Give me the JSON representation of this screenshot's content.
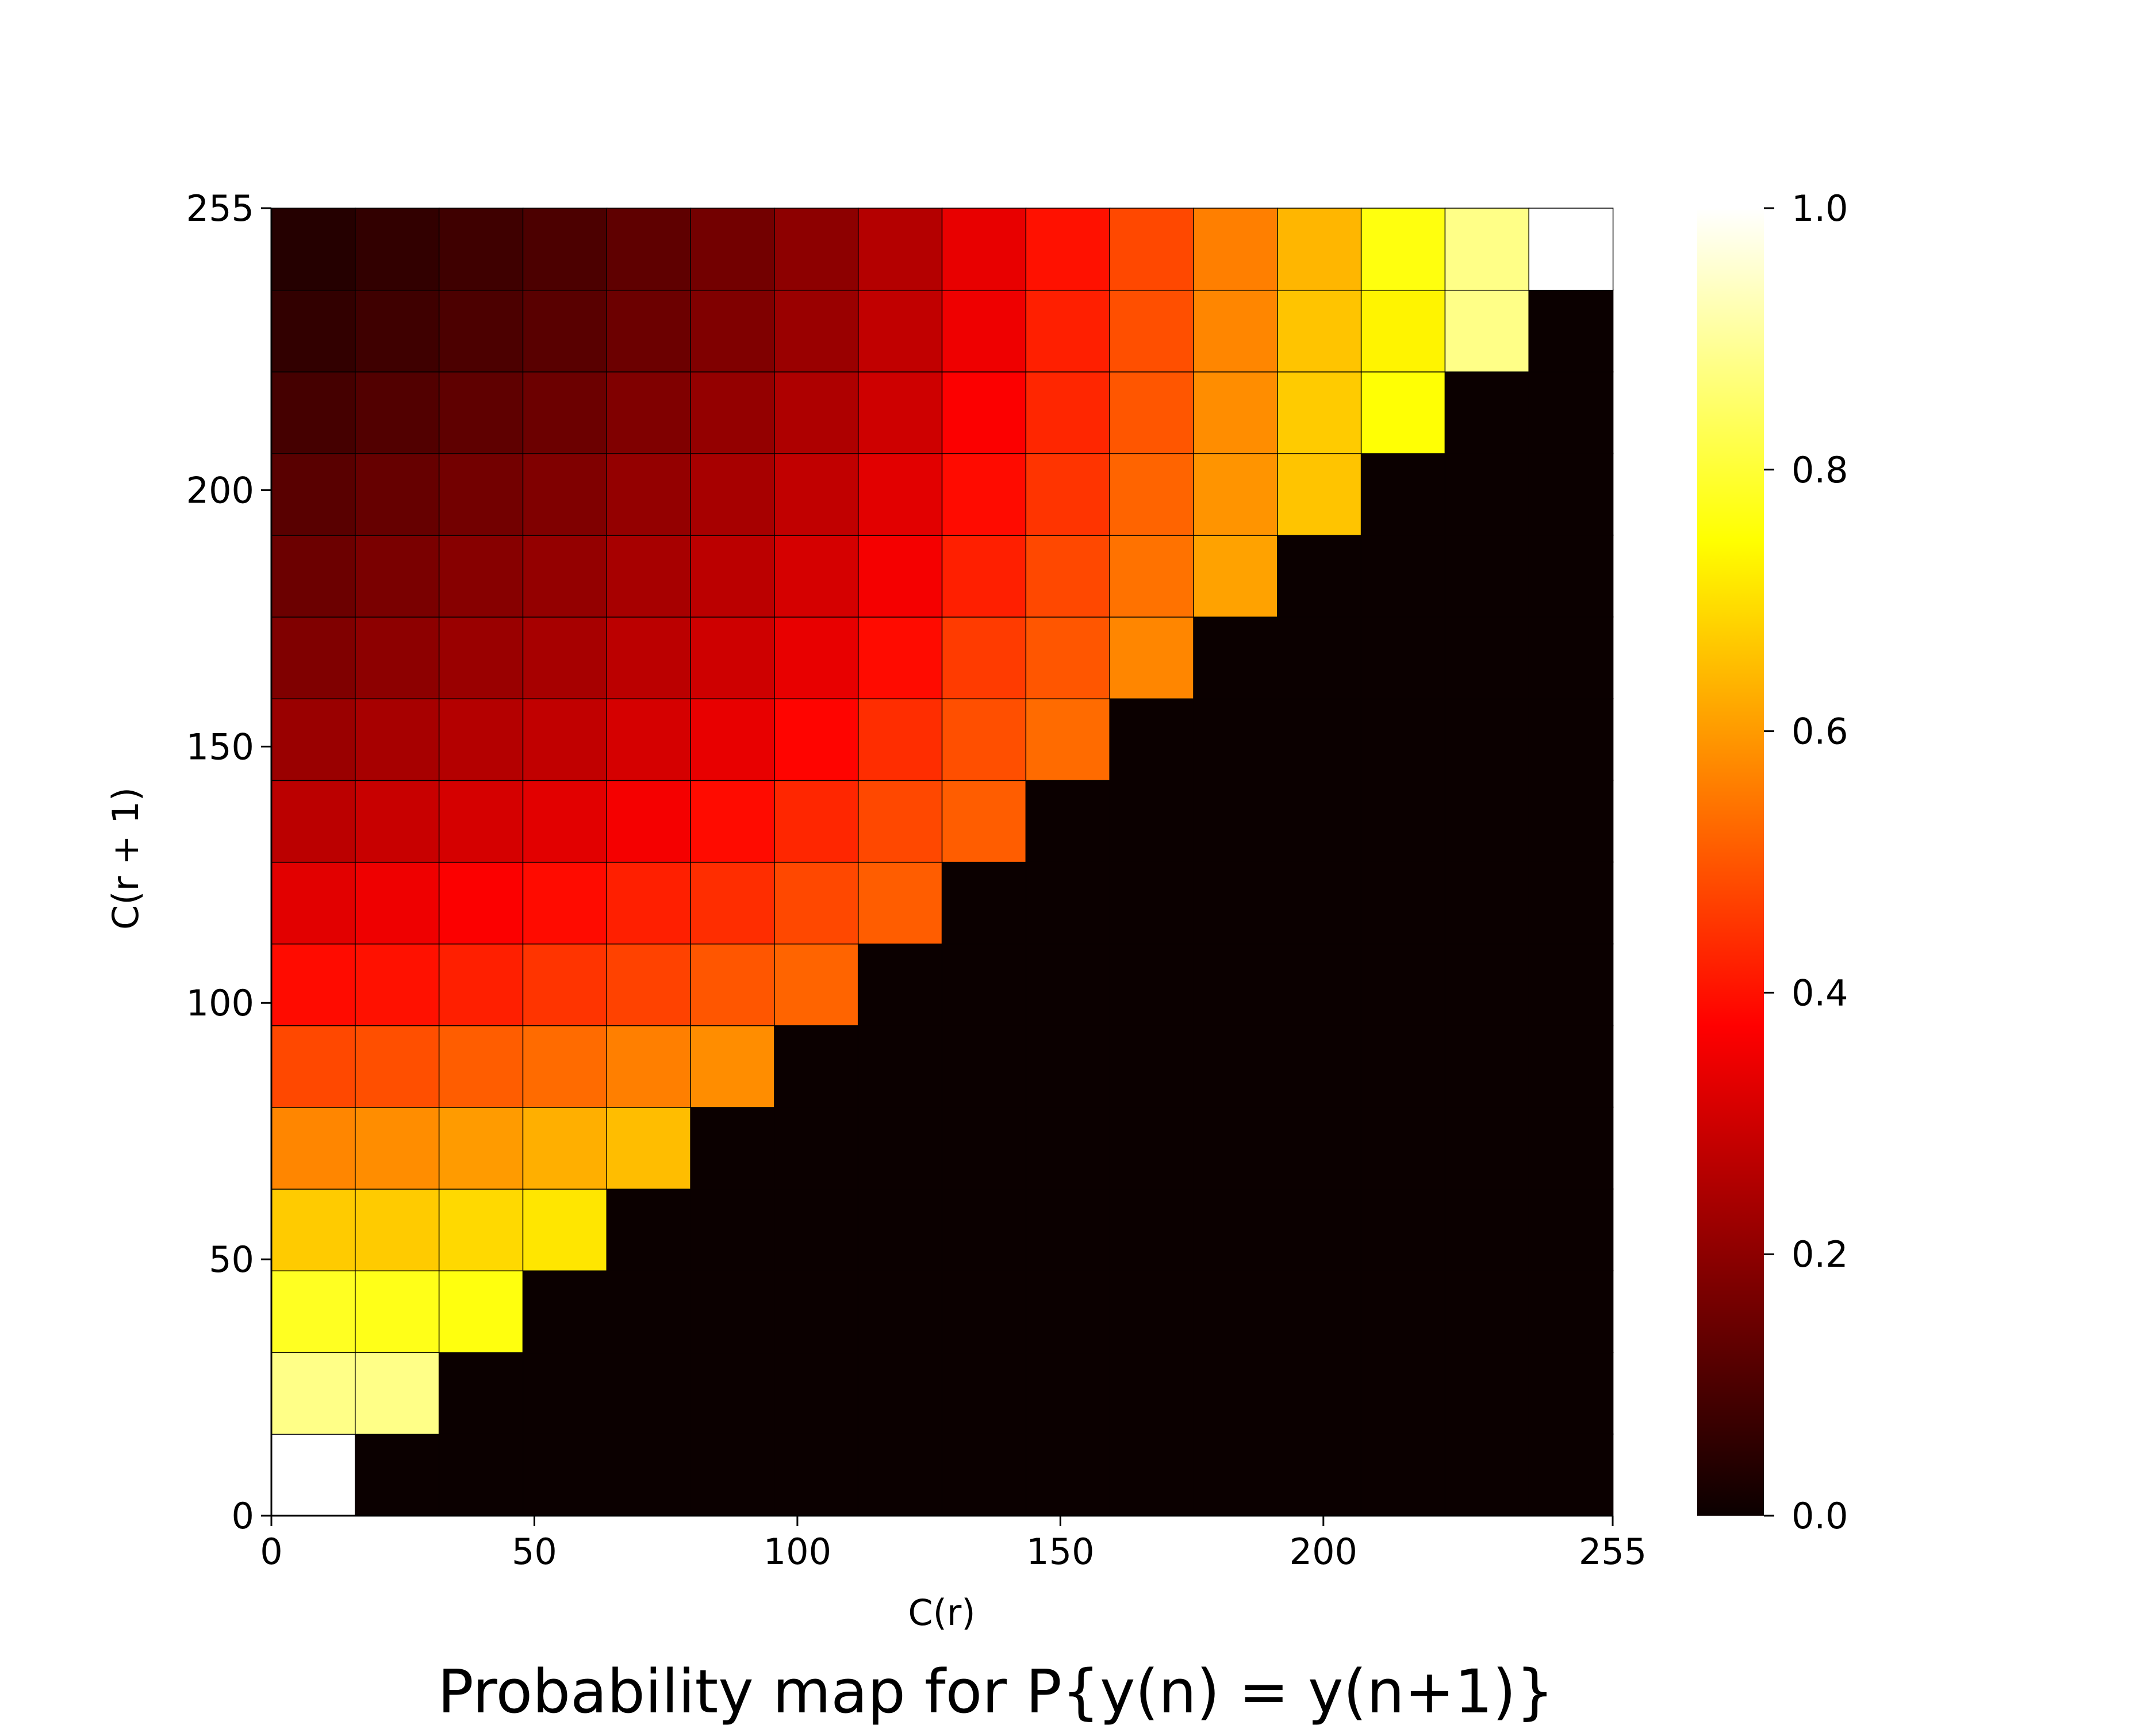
{
  "chart_data": {
    "type": "heatmap",
    "title": "Probability map for P{y(n) = y(n+1)}",
    "xlabel": "C(r)",
    "ylabel": "C(r + 1)",
    "xlim": [
      0,
      255
    ],
    "ylim": [
      0,
      255
    ],
    "x_ticks": [
      0,
      50,
      100,
      150,
      200,
      255
    ],
    "y_ticks": [
      0,
      50,
      100,
      150,
      200,
      255
    ],
    "x_tick_labels": [
      "0",
      "50",
      "100",
      "150",
      "200",
      "255"
    ],
    "y_tick_labels": [
      "0",
      "50",
      "100",
      "150",
      "200",
      "255"
    ],
    "colormap": "hot",
    "colorbar_range": [
      0.0,
      1.0
    ],
    "colorbar_ticks": [
      0.0,
      0.2,
      0.4,
      0.6,
      0.8,
      1.0
    ],
    "colorbar_tick_labels": [
      "0.0",
      "0.2",
      "0.4",
      "0.6",
      "0.8",
      "1.0"
    ],
    "grid": "16x16",
    "rows_note": "rows listed bottom (C(r+1)=0) to top (C(r+1)=255); columns left (C(r)=0) to right (C(r)=255)",
    "values": [
      [
        1.0,
        0.0,
        0.0,
        0.0,
        0.0,
        0.0,
        0.0,
        0.0,
        0.0,
        0.0,
        0.0,
        0.0,
        0.0,
        0.0,
        0.0,
        0.0
      ],
      [
        0.88,
        0.88,
        0.0,
        0.0,
        0.0,
        0.0,
        0.0,
        0.0,
        0.0,
        0.0,
        0.0,
        0.0,
        0.0,
        0.0,
        0.0,
        0.0
      ],
      [
        0.78,
        0.77,
        0.76,
        0.0,
        0.0,
        0.0,
        0.0,
        0.0,
        0.0,
        0.0,
        0.0,
        0.0,
        0.0,
        0.0,
        0.0,
        0.0
      ],
      [
        0.67,
        0.67,
        0.69,
        0.71,
        0.0,
        0.0,
        0.0,
        0.0,
        0.0,
        0.0,
        0.0,
        0.0,
        0.0,
        0.0,
        0.0,
        0.0
      ],
      [
        0.57,
        0.58,
        0.6,
        0.63,
        0.65,
        0.0,
        0.0,
        0.0,
        0.0,
        0.0,
        0.0,
        0.0,
        0.0,
        0.0,
        0.0,
        0.0
      ],
      [
        0.48,
        0.49,
        0.51,
        0.53,
        0.56,
        0.58,
        0.0,
        0.0,
        0.0,
        0.0,
        0.0,
        0.0,
        0.0,
        0.0,
        0.0,
        0.0
      ],
      [
        0.39,
        0.4,
        0.42,
        0.45,
        0.47,
        0.5,
        0.52,
        0.0,
        0.0,
        0.0,
        0.0,
        0.0,
        0.0,
        0.0,
        0.0,
        0.0
      ],
      [
        0.33,
        0.35,
        0.37,
        0.39,
        0.42,
        0.44,
        0.48,
        0.51,
        0.0,
        0.0,
        0.0,
        0.0,
        0.0,
        0.0,
        0.0,
        0.0
      ],
      [
        0.27,
        0.29,
        0.31,
        0.33,
        0.36,
        0.39,
        0.43,
        0.48,
        0.51,
        0.0,
        0.0,
        0.0,
        0.0,
        0.0,
        0.0,
        0.0
      ],
      [
        0.22,
        0.24,
        0.26,
        0.28,
        0.31,
        0.34,
        0.38,
        0.44,
        0.49,
        0.53,
        0.0,
        0.0,
        0.0,
        0.0,
        0.0,
        0.0
      ],
      [
        0.18,
        0.2,
        0.22,
        0.24,
        0.27,
        0.3,
        0.34,
        0.39,
        0.46,
        0.5,
        0.57,
        0.0,
        0.0,
        0.0,
        0.0,
        0.0
      ],
      [
        0.15,
        0.17,
        0.19,
        0.21,
        0.24,
        0.27,
        0.31,
        0.36,
        0.42,
        0.48,
        0.54,
        0.61,
        0.0,
        0.0,
        0.0,
        0.0
      ],
      [
        0.12,
        0.14,
        0.16,
        0.18,
        0.21,
        0.24,
        0.28,
        0.33,
        0.39,
        0.45,
        0.52,
        0.59,
        0.66,
        0.0,
        0.0,
        0.0
      ],
      [
        0.09,
        0.11,
        0.13,
        0.15,
        0.18,
        0.21,
        0.25,
        0.3,
        0.37,
        0.43,
        0.5,
        0.58,
        0.67,
        0.75,
        0.0,
        0.0
      ],
      [
        0.06,
        0.08,
        0.1,
        0.12,
        0.15,
        0.18,
        0.22,
        0.28,
        0.35,
        0.42,
        0.49,
        0.57,
        0.66,
        0.73,
        0.88,
        0.0
      ],
      [
        0.04,
        0.06,
        0.08,
        0.1,
        0.13,
        0.16,
        0.2,
        0.26,
        0.34,
        0.4,
        0.48,
        0.56,
        0.64,
        0.76,
        0.88,
        1.0
      ]
    ]
  }
}
